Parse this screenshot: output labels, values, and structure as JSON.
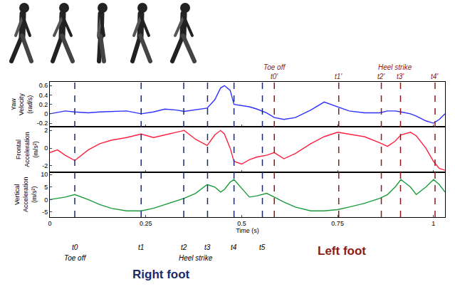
{
  "chart_data": [
    {
      "type": "line",
      "ylabel": "Yaw Velocity (rad/s)",
      "x": [
        0,
        0.02,
        0.04,
        0.065,
        0.1,
        0.13,
        0.16,
        0.2,
        0.238,
        0.27,
        0.3,
        0.33,
        0.35,
        0.38,
        0.41,
        0.43,
        0.445,
        0.455,
        0.47,
        0.48,
        0.5,
        0.52,
        0.54,
        0.565,
        0.585,
        0.61,
        0.64,
        0.68,
        0.715,
        0.75,
        0.78,
        0.82,
        0.86,
        0.88,
        0.9,
        0.915,
        0.94,
        0.955,
        0.98,
        1.0,
        1.015,
        1.03
      ],
      "series": [
        {
          "color": "#2f2fff",
          "values": [
            0.0,
            0.03,
            0.06,
            0.04,
            0.02,
            0.04,
            0.05,
            0.06,
            0.0,
            0.04,
            0.1,
            0.08,
            0.05,
            0.08,
            0.12,
            0.3,
            0.55,
            0.6,
            0.5,
            0.2,
            0.18,
            0.15,
            0.1,
            0.02,
            -0.08,
            -0.12,
            -0.08,
            0.08,
            0.25,
            0.15,
            0.06,
            0.02,
            0.02,
            0.06,
            0.06,
            0.04,
            0.0,
            -0.05,
            -0.15,
            -0.2,
            -0.12,
            0.0
          ]
        }
      ],
      "xlim": [
        0,
        1.03
      ],
      "xticks": [
        0,
        0.25,
        0.5,
        0.75,
        1
      ],
      "ylim": [
        -0.28,
        0.68
      ],
      "yticks": [
        -0.2,
        0,
        0.2,
        0.4,
        0.6
      ],
      "tick_labels": "y"
    },
    {
      "type": "line",
      "ylabel": "Frontal Acceleration (m/s²)",
      "x": [
        0,
        0.02,
        0.04,
        0.065,
        0.1,
        0.13,
        0.16,
        0.2,
        0.238,
        0.27,
        0.3,
        0.33,
        0.35,
        0.38,
        0.41,
        0.43,
        0.445,
        0.455,
        0.47,
        0.48,
        0.5,
        0.52,
        0.54,
        0.565,
        0.585,
        0.61,
        0.64,
        0.68,
        0.715,
        0.75,
        0.78,
        0.82,
        0.86,
        0.88,
        0.9,
        0.915,
        0.94,
        0.955,
        0.98,
        1.0,
        1.015,
        1.03
      ],
      "series": [
        {
          "color": "#ff2040",
          "values": [
            -0.5,
            -0.2,
            -0.8,
            -1.4,
            -0.2,
            0.5,
            0.9,
            1.2,
            1.6,
            1.2,
            1.5,
            1.8,
            2.0,
            1.0,
            0.3,
            1.5,
            2.0,
            1.6,
            0.0,
            -1.5,
            -1.8,
            -1.3,
            -1.0,
            -0.8,
            -0.5,
            -1.2,
            -0.6,
            0.5,
            1.3,
            1.8,
            1.6,
            1.3,
            0.6,
            0.2,
            0.8,
            1.5,
            1.8,
            1.4,
            0.0,
            -1.5,
            -2.3,
            -2.5
          ]
        }
      ],
      "xlim": [
        0,
        1.03
      ],
      "xticks": [
        0,
        0.25,
        0.5,
        0.75,
        1
      ],
      "ylim": [
        -2.7,
        2.4
      ],
      "yticks": [
        -2,
        0,
        2
      ],
      "tick_labels": "y"
    },
    {
      "type": "line",
      "ylabel": "Vertical Acceleration (m/s²)",
      "xlabel": "Time (s)",
      "x": [
        0,
        0.02,
        0.04,
        0.065,
        0.1,
        0.13,
        0.16,
        0.2,
        0.238,
        0.27,
        0.3,
        0.33,
        0.35,
        0.38,
        0.41,
        0.43,
        0.445,
        0.455,
        0.47,
        0.48,
        0.5,
        0.52,
        0.54,
        0.565,
        0.585,
        0.61,
        0.64,
        0.68,
        0.715,
        0.75,
        0.78,
        0.82,
        0.86,
        0.88,
        0.9,
        0.915,
        0.94,
        0.955,
        0.98,
        1.0,
        1.015,
        1.03
      ],
      "series": [
        {
          "color": "#1a9a3a",
          "values": [
            0,
            0.5,
            1,
            2,
            0,
            -2,
            -3.5,
            -4.5,
            -4.5,
            -3.5,
            -2,
            -0.5,
            0.5,
            2.5,
            6,
            5,
            3,
            4,
            7,
            8,
            4.5,
            1,
            1.5,
            2.5,
            1,
            -1,
            -3,
            -4.5,
            -4.5,
            -4,
            -3,
            -1.5,
            0.5,
            2,
            5,
            8,
            5,
            2,
            5,
            8,
            6,
            3
          ]
        }
      ],
      "xlim": [
        0,
        1.03
      ],
      "xticks": [
        0,
        0.25,
        0.5,
        0.75,
        1
      ],
      "ylim": [
        -7,
        11
      ],
      "yticks": [
        -5,
        0,
        5,
        10
      ],
      "tick_labels": true
    }
  ],
  "events": [
    {
      "label": {
        "text": "Right foot",
        "x": 0.29
      },
      "color": "#1c2a6e",
      "line_style": "dash",
      "markers": [
        {
          "name": "t0",
          "x": 0.065
        },
        {
          "name": "t1",
          "x": 0.238
        },
        {
          "name": "t2",
          "x": 0.349
        },
        {
          "name": "t3",
          "x": 0.411
        },
        {
          "name": "t4",
          "x": 0.48
        },
        {
          "name": "t5",
          "x": 0.554
        }
      ],
      "phases": [
        {
          "text": "Toe off",
          "x": 0.065
        },
        {
          "text": "Heel strike",
          "x": 0.38
        }
      ]
    },
    {
      "label": {
        "text": "Left foot",
        "x": 0.76
      },
      "color": "#8b1a1a",
      "line_style": "dash",
      "markers": [
        {
          "name": "t0'",
          "x": 0.585
        },
        {
          "name": "t1'",
          "x": 0.753
        },
        {
          "name": "t2'",
          "x": 0.864
        },
        {
          "name": "t3'",
          "x": 0.914
        },
        {
          "name": "t4'",
          "x": 1.004
        }
      ],
      "phases": [
        {
          "text": "Toe off",
          "x": 0.585
        },
        {
          "text": "Heel strike",
          "x": 0.9
        }
      ]
    }
  ]
}
